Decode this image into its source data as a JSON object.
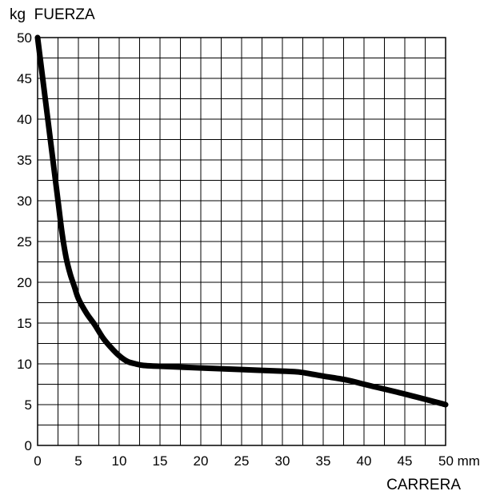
{
  "chart_data": {
    "type": "line",
    "ylabel": "kg  FUERZA",
    "xlabel": "CARRERA",
    "x_unit": "mm",
    "xlim": [
      0,
      50
    ],
    "ylim": [
      0,
      50
    ],
    "grid": true,
    "x_ticks": [
      0,
      5,
      10,
      15,
      20,
      25,
      30,
      35,
      40,
      45,
      50
    ],
    "y_ticks": [
      0,
      5,
      10,
      15,
      20,
      25,
      30,
      35,
      40,
      45,
      50
    ],
    "x_tick_labels": [
      "0",
      "5",
      "10",
      "15",
      "20",
      "25",
      "30",
      "35",
      "40",
      "45",
      "50 mm"
    ],
    "y_tick_labels": [
      "0",
      "5",
      "10",
      "15",
      "20",
      "25",
      "30",
      "35",
      "40",
      "45",
      "50"
    ],
    "series": [
      {
        "color": "#000000",
        "x": [
          0,
          0.5,
          1,
          1.5,
          2,
          2.5,
          3,
          3.5,
          4,
          4.5,
          5,
          6,
          7,
          8,
          9,
          10,
          11,
          12,
          13,
          15,
          20,
          25,
          30,
          32,
          35,
          38,
          40,
          45,
          50
        ],
        "y": [
          50,
          46,
          42,
          38,
          34,
          30,
          26,
          23,
          21,
          19.5,
          18,
          16.2,
          14.8,
          13.2,
          12,
          11,
          10.3,
          10,
          9.8,
          9.7,
          9.5,
          9.3,
          9.1,
          9.0,
          8.5,
          8.0,
          7.5,
          6.3,
          5
        ]
      }
    ]
  }
}
